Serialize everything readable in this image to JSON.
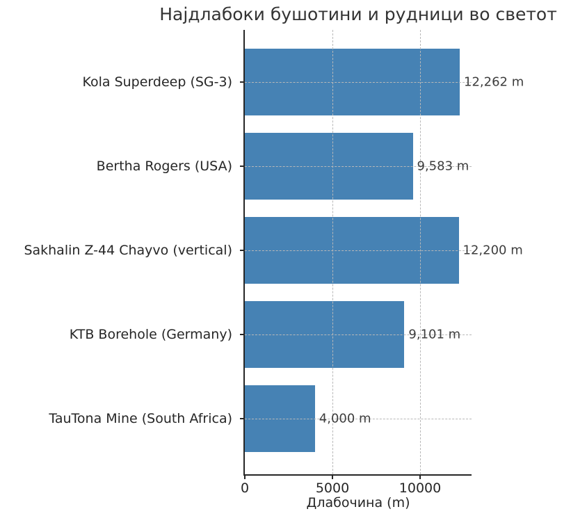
{
  "chart_data": {
    "type": "bar",
    "orientation": "horizontal",
    "title": "Најдлабоки бушотини и рудници во светот",
    "xlabel": "Длабочина (m)",
    "ylabel": "",
    "categories": [
      "Kola Superdeep (SG-3)",
      "Bertha Rogers (USA)",
      "Sakhalin Z-44 Chayvo (vertical)",
      "KTB Borehole (Germany)",
      "TauTona Mine (South Africa)"
    ],
    "values": [
      12262,
      9583,
      12200,
      9101,
      4000
    ],
    "value_labels": [
      "12,262 m",
      "9,583 m",
      "12,200 m",
      "9,101 m",
      "4,000 m"
    ],
    "xlim": [
      0,
      12936
    ],
    "x_ticks": [
      0,
      5000,
      10000
    ],
    "x_tick_labels": [
      "0",
      "5000",
      "10000"
    ],
    "grid": true,
    "grid_style": "dashed",
    "legend": "none",
    "bar_color": "#4682B4",
    "grid_color": "#b8b8b8",
    "text_color": "#262626",
    "value_label_color": "#3d3d3d"
  }
}
